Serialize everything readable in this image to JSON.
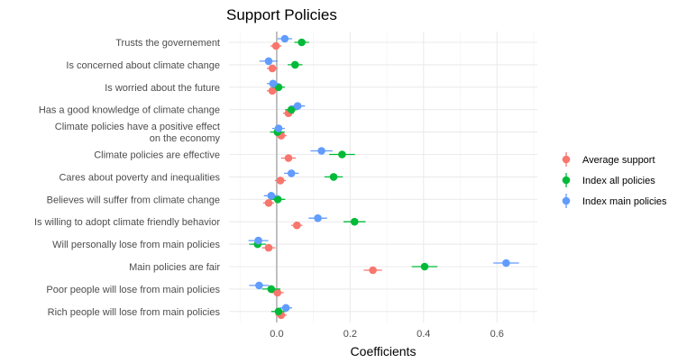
{
  "chart_data": {
    "type": "scatter",
    "title": "Support Policies",
    "xlabel": "Coefficients",
    "ylabel": "",
    "xlim": [
      -0.13,
      0.71
    ],
    "x_ticks": [
      0.0,
      0.2,
      0.4,
      0.6
    ],
    "x_tick_labels": [
      "0.0",
      "0.2",
      "0.4",
      "0.6"
    ],
    "reference_line_x": 0,
    "grid": true,
    "legend_position": "right",
    "categories": [
      "Trusts the governement",
      "Is concerned about climate change",
      "Is worried about the future",
      "Has a good knowledge of climate change",
      "Climate policies have a positive effect on the economy",
      "Climate policies are effective",
      "Cares about poverty and inequalities",
      "Believes will suffer from climate change",
      "Is willing to adopt climate friendly behavior",
      "Will personally lose from main policies",
      "Main policies are fair",
      "Poor people will lose from main policies",
      "Rich people will lose from main policies"
    ],
    "category_label_lines": [
      [
        "Trusts the governement"
      ],
      [
        "Is concerned about climate change"
      ],
      [
        "Is worried about the future"
      ],
      [
        "Has a good knowledge of climate change"
      ],
      [
        "Climate policies have a positive effect",
        "on the economy"
      ],
      [
        "Climate policies are effective"
      ],
      [
        "Cares about poverty and inequalities"
      ],
      [
        "Believes will suffer from climate change"
      ],
      [
        "Is willing to adopt climate friendly behavior"
      ],
      [
        "Will personally lose from main policies"
      ],
      [
        "Main policies are fair"
      ],
      [
        "Poor people will lose from main policies"
      ],
      [
        "Rich people will lose from main policies"
      ]
    ],
    "series": [
      {
        "name": "Average support",
        "color": "#F8766D",
        "values": [
          -0.002,
          -0.012,
          -0.012,
          0.032,
          0.012,
          0.032,
          0.01,
          -0.022,
          0.055,
          -0.022,
          0.262,
          0.002,
          0.012
        ],
        "ci_low": [
          -0.017,
          -0.027,
          -0.027,
          0.017,
          -0.003,
          0.012,
          -0.005,
          -0.037,
          0.04,
          -0.04,
          0.237,
          -0.015,
          -0.003
        ],
        "ci_high": [
          0.013,
          0.003,
          0.003,
          0.047,
          0.027,
          0.052,
          0.025,
          -0.007,
          0.07,
          -0.004,
          0.287,
          0.019,
          0.027
        ]
      },
      {
        "name": "Index all policies",
        "color": "#00BA38",
        "values": [
          0.068,
          0.05,
          0.005,
          0.04,
          0.002,
          0.178,
          0.155,
          0.003,
          0.212,
          -0.052,
          0.403,
          -0.015,
          0.005
        ],
        "ci_low": [
          0.048,
          0.03,
          -0.012,
          0.023,
          -0.018,
          0.143,
          0.13,
          -0.017,
          0.182,
          -0.075,
          0.368,
          -0.04,
          -0.015
        ],
        "ci_high": [
          0.088,
          0.07,
          0.022,
          0.057,
          0.022,
          0.213,
          0.18,
          0.023,
          0.242,
          -0.029,
          0.438,
          0.01,
          0.025
        ]
      },
      {
        "name": "Index main policies",
        "color": "#619CFF",
        "values": [
          0.022,
          -0.022,
          -0.01,
          0.057,
          0.005,
          0.122,
          0.04,
          -0.015,
          0.112,
          -0.05,
          0.625,
          -0.048,
          0.025
        ],
        "ci_low": [
          0.002,
          -0.047,
          -0.027,
          0.037,
          -0.012,
          0.092,
          0.02,
          -0.035,
          0.087,
          -0.077,
          0.59,
          -0.075,
          0.008
        ],
        "ci_high": [
          0.042,
          0.003,
          0.007,
          0.077,
          0.022,
          0.152,
          0.06,
          0.005,
          0.137,
          -0.023,
          0.66,
          -0.021,
          0.042
        ]
      }
    ]
  }
}
